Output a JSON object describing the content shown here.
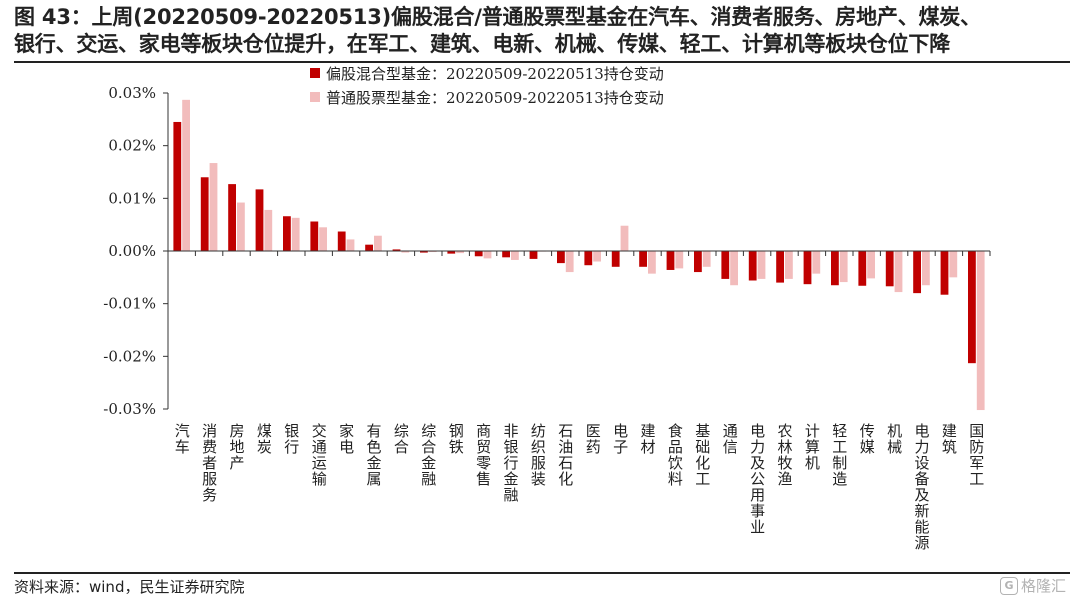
{
  "header": {
    "title_line1": "图 43：上周(20220509-20220513)偏股混合/普通股票型基金在汽车、消费者服务、房地产、煤炭、",
    "title_line2": "银行、交运、家电等板块仓位提升，在军工、建筑、电新、机械、传媒、轻工、计算机等板块仓位下降"
  },
  "footer": {
    "source": "资料来源：wind，民生证券研究院",
    "watermark_mark": "G",
    "watermark_text": "格隆汇"
  },
  "colors": {
    "series1": "#c00000",
    "series2": "#f2bcbc",
    "axis": "#333333"
  },
  "chart_data": {
    "type": "bar",
    "categories": [
      "汽车",
      "消费者服务",
      "房地产",
      "煤炭",
      "银行",
      "交通运输",
      "家电",
      "有色金属",
      "综合",
      "综合金融",
      "钢铁",
      "商贸零售",
      "非银行金融",
      "纺织服装",
      "石油石化",
      "医药",
      "电子",
      "建材",
      "食品饮料",
      "基础化工",
      "通信",
      "电力及公用事业",
      "农林牧渔",
      "计算机",
      "轻工制造",
      "传媒",
      "机械",
      "电力设备及新能源",
      "建筑",
      "国防军工"
    ],
    "series": [
      {
        "name": "偏股混合型基金：20220509-20220513持仓变动",
        "values": [
          0.0245,
          0.014,
          0.0127,
          0.0117,
          0.0066,
          0.0056,
          0.0037,
          0.0012,
          0.0003,
          -0.0003,
          -0.0005,
          -0.001,
          -0.0012,
          -0.0015,
          -0.0023,
          -0.0027,
          -0.003,
          -0.003,
          -0.0036,
          -0.004,
          -0.0053,
          -0.0056,
          -0.006,
          -0.0063,
          -0.0065,
          -0.0066,
          -0.0067,
          -0.008,
          -0.0083,
          -0.0213
        ]
      },
      {
        "name": "普通股票型基金：20220509-20220513持仓变动",
        "values": [
          0.0287,
          0.0167,
          0.0092,
          0.0078,
          0.0063,
          0.0045,
          0.0022,
          0.0029,
          -0.0003,
          -0.0002,
          -0.0004,
          -0.0014,
          -0.0017,
          0.0,
          -0.004,
          -0.002,
          0.0048,
          -0.0043,
          -0.0033,
          -0.003,
          -0.0065,
          -0.0053,
          -0.0053,
          -0.0043,
          -0.0059,
          -0.0052,
          -0.0078,
          -0.0065,
          -0.005,
          -0.0302
        ]
      }
    ],
    "y_ticks": [
      "0.03%",
      "0.02%",
      "0.01%",
      "0.00%",
      "-0.01%",
      "-0.02%",
      "-0.03%"
    ],
    "ylim": [
      -0.03,
      0.03
    ],
    "xlabel": "",
    "ylabel": "",
    "grid": false,
    "legend": "top-left"
  }
}
